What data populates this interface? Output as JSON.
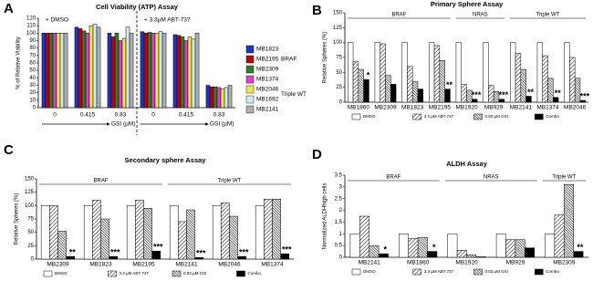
{
  "chart_data": [
    {
      "panel": "A",
      "type": "bar",
      "title": "Cell Viability (ATP) Assay",
      "ylabel": "% of Relative Viability",
      "xlabel": "GSI (µM)",
      "conditions": [
        "+ DMSO",
        "+ 3.3µM ABT-737"
      ],
      "categories": [
        "0",
        "0.415",
        "0.83",
        "0",
        "0.415",
        "0.83"
      ],
      "series": [
        {
          "name": "MB1823",
          "color": "#1f35c4",
          "values": [
            100,
            108,
            100,
            102,
            98,
            30
          ]
        },
        {
          "name": "MB2195",
          "color": "#c00000",
          "values": [
            100,
            106,
            95,
            100,
            97,
            28
          ]
        },
        {
          "name": "MB2309",
          "color": "#2e7d32",
          "values": [
            100,
            103,
            100,
            101,
            95,
            28
          ]
        },
        {
          "name": "MB1374",
          "color": "#e040c8",
          "values": [
            100,
            100,
            90,
            100,
            90,
            27
          ]
        },
        {
          "name": "MB2046",
          "color": "#f2e64a",
          "values": [
            100,
            110,
            93,
            100,
            95,
            25
          ]
        },
        {
          "name": "MB1692",
          "color": "#cfe8f5",
          "values": [
            100,
            112,
            108,
            102,
            92,
            27
          ]
        },
        {
          "name": "MB2141",
          "color": "#b0b0b0",
          "values": [
            100,
            108,
            100,
            100,
            100,
            30
          ]
        }
      ],
      "legend_groups": [
        {
          "label": "BRAF",
          "members": [
            "MB1823",
            "MB2195",
            "MB2309"
          ]
        },
        {
          "label": "Triple WT",
          "members": [
            "MB1374",
            "MB2046",
            "MB1692",
            "MB2141"
          ]
        }
      ],
      "ylim": [
        0,
        120
      ],
      "yticks": [
        0,
        10,
        20,
        30,
        40,
        50,
        60,
        70,
        80,
        90,
        100,
        110,
        120
      ]
    },
    {
      "panel": "B",
      "type": "bar",
      "title": "Primary Sphere Assay",
      "ylabel": "Relative Spheres (%)",
      "categories": [
        "MB1860",
        "MB2309",
        "MB1823",
        "MB2195",
        "MB1920",
        "MB929",
        "MB2141",
        "MB1374",
        "MB2046"
      ],
      "series": [
        {
          "name": "DMSO",
          "pattern": "white",
          "values": [
            100,
            100,
            100,
            100,
            100,
            100,
            100,
            100,
            100
          ]
        },
        {
          "name": "3.3 µM ABT-737",
          "pattern": "hatch",
          "values": [
            68,
            98,
            60,
            95,
            30,
            28,
            82,
            78,
            75
          ]
        },
        {
          "name": "0.83 µM GSI",
          "pattern": "dense-hatch",
          "values": [
            55,
            45,
            35,
            70,
            20,
            18,
            55,
            40,
            40
          ]
        },
        {
          "name": "Combo",
          "pattern": "black",
          "values": [
            38,
            30,
            22,
            22,
            5,
            5,
            10,
            8,
            3
          ]
        }
      ],
      "groups": [
        {
          "label": "BRAF",
          "members": [
            "MB1860",
            "MB2309",
            "MB1823",
            "MB2195"
          ]
        },
        {
          "label": "NRAS",
          "members": [
            "MB1920",
            "MB929"
          ]
        },
        {
          "label": "Triple WT",
          "members": [
            "MB2141",
            "MB1374",
            "MB2046"
          ]
        }
      ],
      "annotations": [
        {
          "category": "MB1860",
          "text": "*"
        },
        {
          "category": "MB2195",
          "text": "**"
        },
        {
          "category": "MB1920",
          "text": "***"
        },
        {
          "category": "MB929",
          "text": "***"
        },
        {
          "category": "MB2141",
          "text": "**"
        },
        {
          "category": "MB1374",
          "text": "**"
        },
        {
          "category": "MB2046",
          "text": "***"
        }
      ],
      "ylim": [
        0,
        150
      ],
      "yticks": [
        0,
        25,
        50,
        75,
        100,
        125,
        150
      ]
    },
    {
      "panel": "C",
      "type": "bar",
      "title": "Secondary sphere Assay",
      "ylabel": "Relative Spheres (%)",
      "categories": [
        "MB2309",
        "MB1823",
        "MB2195",
        "MB2141",
        "MB2046",
        "MB1374"
      ],
      "series": [
        {
          "name": "DMSO",
          "pattern": "white",
          "values": [
            100,
            100,
            100,
            100,
            100,
            100
          ]
        },
        {
          "name": "3.3 µM ABT-737",
          "pattern": "hatch",
          "values": [
            100,
            110,
            110,
            70,
            105,
            112
          ]
        },
        {
          "name": "0.83 µM GSI",
          "pattern": "dense-hatch",
          "values": [
            52,
            75,
            95,
            92,
            80,
            112
          ]
        },
        {
          "name": "Combo",
          "pattern": "black",
          "values": [
            5,
            5,
            15,
            3,
            5,
            10
          ]
        }
      ],
      "groups": [
        {
          "label": "BRAF",
          "members": [
            "MB2309",
            "MB1823",
            "MB2195"
          ]
        },
        {
          "label": "Triple WT",
          "members": [
            "MB2141",
            "MB2046",
            "MB1374"
          ]
        }
      ],
      "annotations": [
        {
          "category": "MB2309",
          "text": "**"
        },
        {
          "category": "MB1823",
          "text": "***"
        },
        {
          "category": "MB2195",
          "text": "***"
        },
        {
          "category": "MB2141",
          "text": "***"
        },
        {
          "category": "MB2046",
          "text": "***"
        },
        {
          "category": "MB1374",
          "text": "***"
        }
      ],
      "ylim": [
        0,
        150
      ],
      "yticks": [
        0,
        25,
        50,
        75,
        100,
        125,
        150
      ]
    },
    {
      "panel": "D",
      "type": "bar",
      "title": "ALDH Assay",
      "ylabel": "Normalized ALDHhigh cells",
      "categories": [
        "MB2141",
        "MB1860",
        "MB1920",
        "MB929",
        "MB2309"
      ],
      "series": [
        {
          "name": "DMSO",
          "pattern": "white",
          "values": [
            1,
            1,
            1,
            1,
            1
          ]
        },
        {
          "name": "3.3 µM ABT-737",
          "pattern": "hatch",
          "values": [
            1.75,
            0.8,
            0.3,
            0.75,
            1.8
          ]
        },
        {
          "name": "0.83 µM GSI",
          "pattern": "dense-hatch",
          "values": [
            0.5,
            0.85,
            0.1,
            0.75,
            3.1
          ]
        },
        {
          "name": "Combo",
          "pattern": "black",
          "values": [
            0.15,
            0.25,
            0.02,
            0.4,
            0.25
          ]
        }
      ],
      "groups": [
        {
          "label": "BRAF",
          "members": [
            "MB2141",
            "MB1860"
          ]
        },
        {
          "label": "NRAS",
          "members": [
            "MB1920",
            "MB929"
          ]
        },
        {
          "label": "Triple WT",
          "members": [
            "MB2309"
          ]
        }
      ],
      "annotations": [
        {
          "category": "MB2141",
          "text": "*"
        },
        {
          "category": "MB1860",
          "text": "*"
        },
        {
          "category": "MB2309",
          "text": "**"
        }
      ],
      "ylim": [
        0,
        3.5
      ],
      "yticks": [
        0,
        0.5,
        1,
        1.5,
        2,
        2.5,
        3,
        3.5
      ]
    }
  ]
}
